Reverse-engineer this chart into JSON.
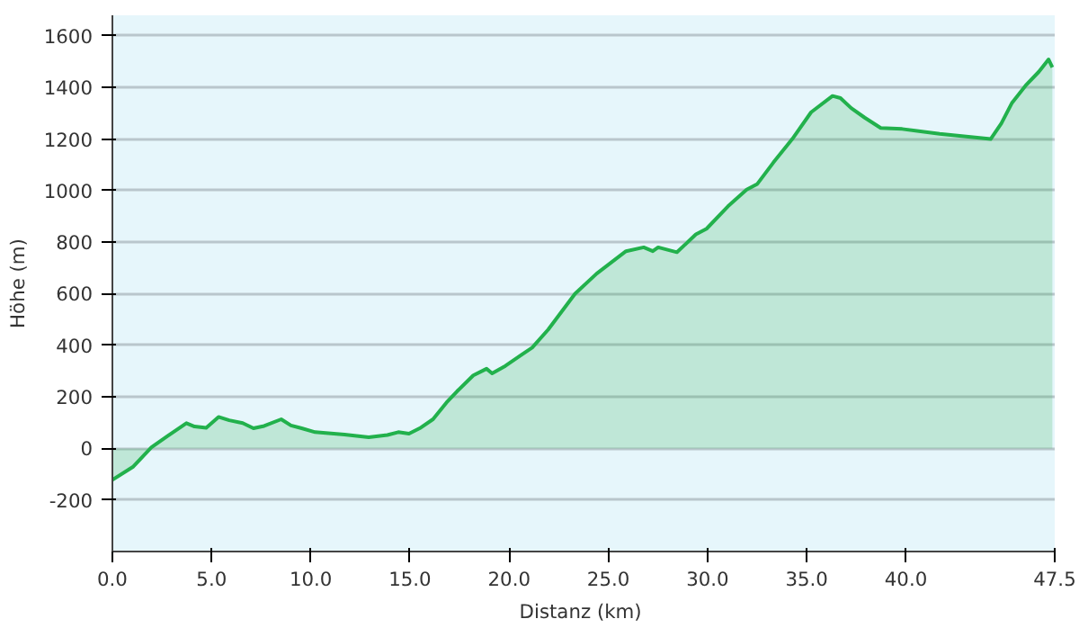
{
  "chart_data": {
    "type": "area",
    "xlabel": "Distanz  (km)",
    "ylabel": "Höhe (m)",
    "xlim": [
      0,
      47.5
    ],
    "ylim": [
      -400,
      1680
    ],
    "xticks": [
      {
        "value": 0,
        "label": "0.0"
      },
      {
        "value": 5,
        "label": "5.0"
      },
      {
        "value": 10,
        "label": "10.0"
      },
      {
        "value": 15,
        "label": "15.0"
      },
      {
        "value": 20,
        "label": "20.0"
      },
      {
        "value": 25,
        "label": "25.0"
      },
      {
        "value": 30,
        "label": "30.0"
      },
      {
        "value": 35,
        "label": "35.0"
      },
      {
        "value": 40,
        "label": "40.0"
      },
      {
        "value": 47.5,
        "label": "47.5"
      }
    ],
    "yticks": [
      -200,
      0,
      200,
      400,
      600,
      800,
      1000,
      1200,
      1400,
      1600
    ],
    "grid": "y",
    "x": [
      0,
      1.03,
      1.97,
      2.78,
      3.73,
      4.14,
      4.73,
      5.35,
      5.89,
      6.57,
      7.11,
      7.65,
      8.51,
      9.0,
      9.54,
      10.22,
      10.89,
      11.7,
      12.92,
      13.86,
      14.41,
      14.95,
      15.49,
      16.16,
      16.84,
      17.38,
      18.19,
      18.86,
      19.14,
      19.81,
      20.62,
      21.16,
      21.97,
      23.32,
      24.41,
      25.89,
      26.78,
      27.24,
      27.51,
      28.46,
      29.41,
      29.95,
      31.03,
      31.97,
      32.51,
      33.32,
      34.27,
      35.22,
      36.3,
      36.7,
      37.24,
      37.92,
      38.73,
      39.81,
      41.7,
      44.27,
      44.81,
      45.35,
      46.03,
      46.7,
      47.19,
      47.38
    ],
    "series": [
      {
        "color": "#22b14c",
        "values": [
          -122,
          -72,
          4,
          48,
          98,
          85,
          80,
          122,
          109,
          98,
          78,
          87,
          113,
          89,
          78,
          63,
          59,
          54,
          43,
          52,
          63,
          57,
          78,
          113,
          178,
          222,
          283,
          309,
          291,
          320,
          363,
          391,
          461,
          600,
          678,
          765,
          780,
          765,
          780,
          761,
          830,
          852,
          939,
          1004,
          1026,
          1109,
          1200,
          1304,
          1367,
          1359,
          1320,
          1283,
          1243,
          1239,
          1220,
          1200,
          1261,
          1341,
          1407,
          1461,
          1509,
          1478
        ]
      }
    ]
  }
}
